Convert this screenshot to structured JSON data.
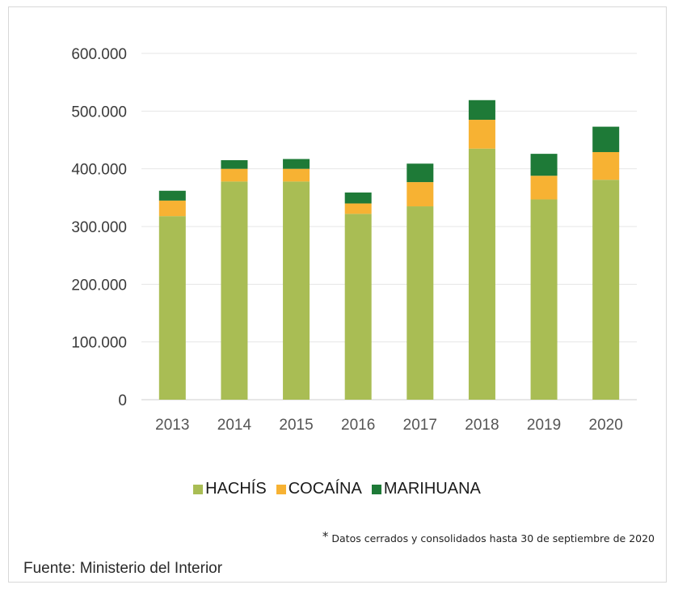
{
  "chart_data": {
    "type": "bar",
    "stacked": true,
    "categories": [
      "2013",
      "2014",
      "2015",
      "2016",
      "2017",
      "2018",
      "2019",
      "2020"
    ],
    "series": [
      {
        "name": "HACHÍS",
        "color": "#a9bd54",
        "values": [
          318000,
          378000,
          378000,
          322000,
          335000,
          435000,
          347000,
          381000
        ]
      },
      {
        "name": "COCAÍNA",
        "color": "#f7b233",
        "values": [
          27000,
          22000,
          22000,
          18000,
          42000,
          50000,
          41000,
          48000
        ]
      },
      {
        "name": "MARIHUANA",
        "color": "#1e7a37",
        "values": [
          17000,
          15000,
          17000,
          19000,
          32000,
          34000,
          38000,
          44000
        ]
      }
    ],
    "yticks": [
      "0",
      "100.000",
      "200.000",
      "300.000",
      "400.000",
      "500.000",
      "600.000"
    ],
    "ylim": [
      0,
      600000
    ],
    "grid": true,
    "legend_position": "bottom"
  },
  "footnote": {
    "mark": "*",
    "text": "Datos cerrados y consolidados hasta 30 de septiembre de 2020"
  },
  "source": "Fuente: Ministerio del Interior"
}
